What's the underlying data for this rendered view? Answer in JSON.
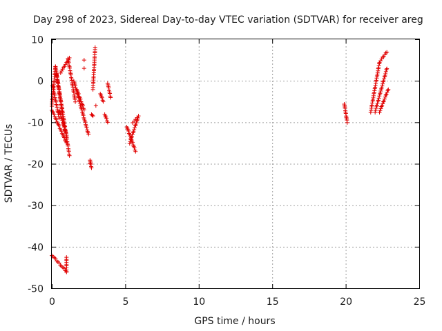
{
  "chart_data": {
    "type": "scatter",
    "title": "Day 298 of 2023, Sidereal Day-to-day VTEC variation (SDTVAR) for receiver areg",
    "xlabel": "GPS time / hours",
    "ylabel": "SDTVAR / TECUs",
    "xlim": [
      0,
      25
    ],
    "ylim": [
      -50,
      10
    ],
    "xticks": [
      0,
      5,
      10,
      15,
      20,
      25
    ],
    "yticks": [
      -50,
      -40,
      -30,
      -20,
      -10,
      0,
      10
    ],
    "xtick_labels": [
      "0",
      "5",
      "10",
      "15",
      "20",
      "25"
    ],
    "ytick_labels": [
      "-50",
      "-40",
      "-30",
      "-20",
      "-10",
      "0",
      "10"
    ],
    "grid": true,
    "marker": "+",
    "series_color": "#e00000",
    "series": [
      {
        "name": "SDTVAR",
        "segments": [
          {
            "x": [
              0.0,
              1.0
            ],
            "y": [
              -42,
              -46
            ]
          },
          {
            "x": [
              1.0,
              1.0
            ],
            "y": [
              -46,
              -42.5
            ]
          },
          {
            "x": [
              0.0,
              0.25
            ],
            "y": [
              -6,
              3.5
            ]
          },
          {
            "x": [
              0.25,
              1.2
            ],
            "y": [
              3.5,
              -18
            ]
          },
          {
            "x": [
              0.0,
              1.0
            ],
            "y": [
              -7,
              -15
            ]
          },
          {
            "x": [
              0.05,
              0.5
            ],
            "y": [
              -1,
              -9
            ]
          },
          {
            "x": [
              0.3,
              0.9
            ],
            "y": [
              2,
              -12
            ]
          },
          {
            "x": [
              0.5,
              1.0
            ],
            "y": [
              -7,
              -13
            ]
          },
          {
            "x": [
              0.6,
              1.2
            ],
            "y": [
              2,
              5.5
            ]
          },
          {
            "x": [
              1.1,
              1.6
            ],
            "y": [
              5.5,
              -5
            ]
          },
          {
            "x": [
              1.5,
              2.5
            ],
            "y": [
              0,
              -13
            ]
          },
          {
            "x": [
              1.7,
              2.2
            ],
            "y": [
              -2,
              -7
            ]
          },
          {
            "x": [
              2.6,
              2.7
            ],
            "y": [
              -19,
              -21
            ]
          },
          {
            "x": [
              2.7,
              2.8
            ],
            "y": [
              -8,
              -8.5
            ]
          },
          {
            "x": [
              2.8,
              2.95
            ],
            "y": [
              -2,
              8
            ]
          },
          {
            "x": [
              3.3,
              3.5
            ],
            "y": [
              -3,
              -5
            ]
          },
          {
            "x": [
              3.6,
              3.8
            ],
            "y": [
              -8,
              -10
            ]
          },
          {
            "x": [
              3.8,
              4.0
            ],
            "y": [
              -0.5,
              -4
            ]
          },
          {
            "x": [
              5.1,
              5.7
            ],
            "y": [
              -11,
              -17
            ]
          },
          {
            "x": [
              5.3,
              5.9
            ],
            "y": [
              -15,
              -8.5
            ]
          },
          {
            "x": [
              5.5,
              5.8
            ],
            "y": [
              -10,
              -9
            ]
          },
          {
            "x": [
              19.9,
              20.1
            ],
            "y": [
              -5.5,
              -10
            ]
          },
          {
            "x": [
              21.7,
              22.3
            ],
            "y": [
              -7.5,
              4.5
            ]
          },
          {
            "x": [
              22.3,
              22.8
            ],
            "y": [
              4.5,
              7
            ]
          },
          {
            "x": [
              22.0,
              22.8
            ],
            "y": [
              -7.5,
              3
            ]
          },
          {
            "x": [
              22.3,
              22.9
            ],
            "y": [
              -7.5,
              -2
            ]
          }
        ],
        "points": [
          {
            "x": 2.2,
            "y": 5
          },
          {
            "x": 2.2,
            "y": 3
          },
          {
            "x": 2.6,
            "y": -20
          },
          {
            "x": 3.0,
            "y": -6
          }
        ]
      }
    ]
  }
}
